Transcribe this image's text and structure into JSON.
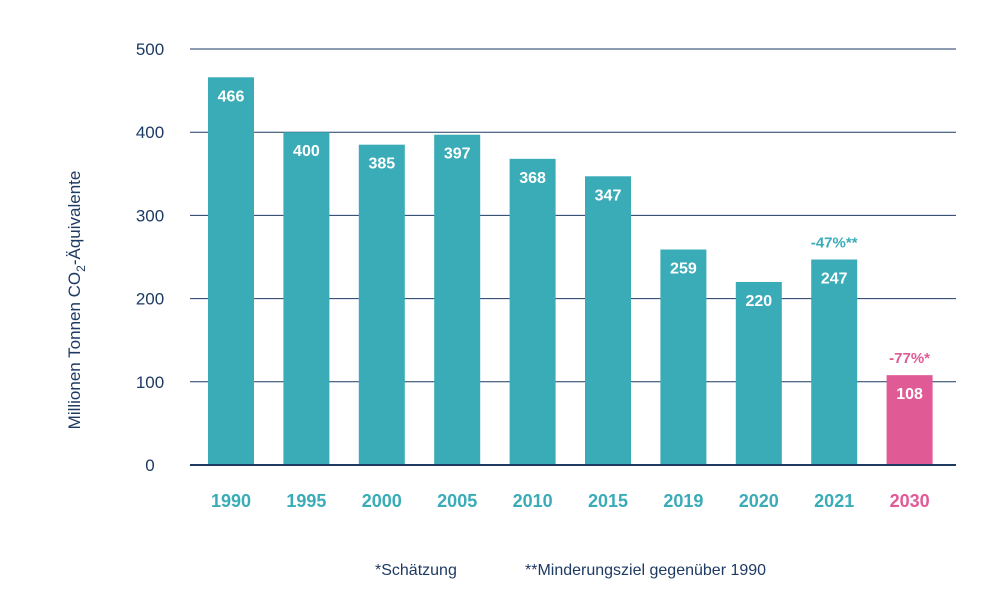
{
  "colors": {
    "bar": "#3aacb8",
    "highlight": "#e05a95",
    "axis": "#1e3a63",
    "grid": "#1e3a63"
  },
  "chart_data": {
    "type": "bar",
    "categories": [
      "1990",
      "1995",
      "2000",
      "2005",
      "2010",
      "2015",
      "2019",
      "2020",
      "2021",
      "2030"
    ],
    "values": [
      466,
      400,
      385,
      397,
      368,
      347,
      259,
      220,
      247,
      108
    ],
    "highlight_category": "2030",
    "title": "",
    "xlabel": "",
    "ylabel_prefix": "Millionen Tonnen CO",
    "ylabel_sub": "2",
    "ylabel_suffix": "-Äquivalente",
    "ylim": [
      0,
      500
    ],
    "yticks": [
      0,
      100,
      200,
      300,
      400,
      500
    ],
    "grid": true,
    "annotations": [
      {
        "category": "2021",
        "text": "-47%**",
        "color": "bar"
      },
      {
        "category": "2030",
        "text": "-77%*",
        "color": "highlight"
      }
    ]
  },
  "footnotes": {
    "estimate": "*Schätzung",
    "target": "**Minderungsziel gegenüber 1990"
  }
}
